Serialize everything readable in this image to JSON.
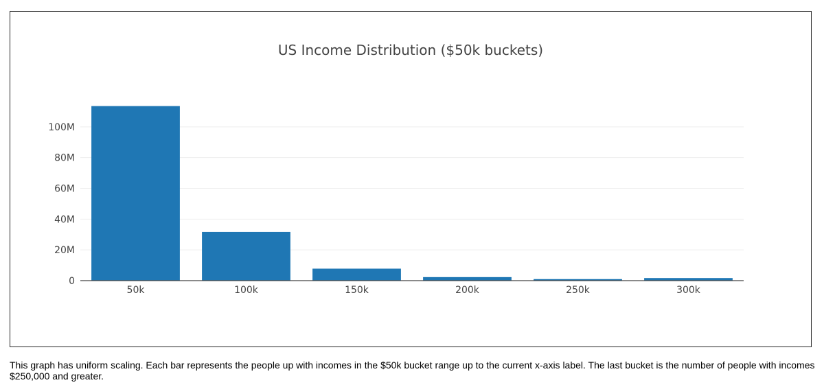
{
  "chart_data": {
    "type": "bar",
    "title": "US Income Distribution ($50k buckets)",
    "xlabel": "",
    "ylabel": "",
    "categories": [
      "50k",
      "100k",
      "150k",
      "200k",
      "250k",
      "300k"
    ],
    "values": [
      113500000,
      31700000,
      7800000,
      2300000,
      1000000,
      1700000
    ],
    "ylim": [
      0,
      120000000
    ],
    "yticks": [
      0,
      20000000,
      40000000,
      60000000,
      80000000,
      100000000
    ],
    "ytick_labels": [
      "0",
      "20M",
      "40M",
      "60M",
      "80M",
      "100M"
    ],
    "grid": true,
    "legend": "none",
    "bar_color": "#1f77b4",
    "grid_color": "#eeeeee"
  },
  "caption": "This graph has uniform scaling. Each bar represents the people up with incomes in the $50k bucket range up to the current x-axis label. The last bucket is the number of people with incomes $250,000 and greater."
}
